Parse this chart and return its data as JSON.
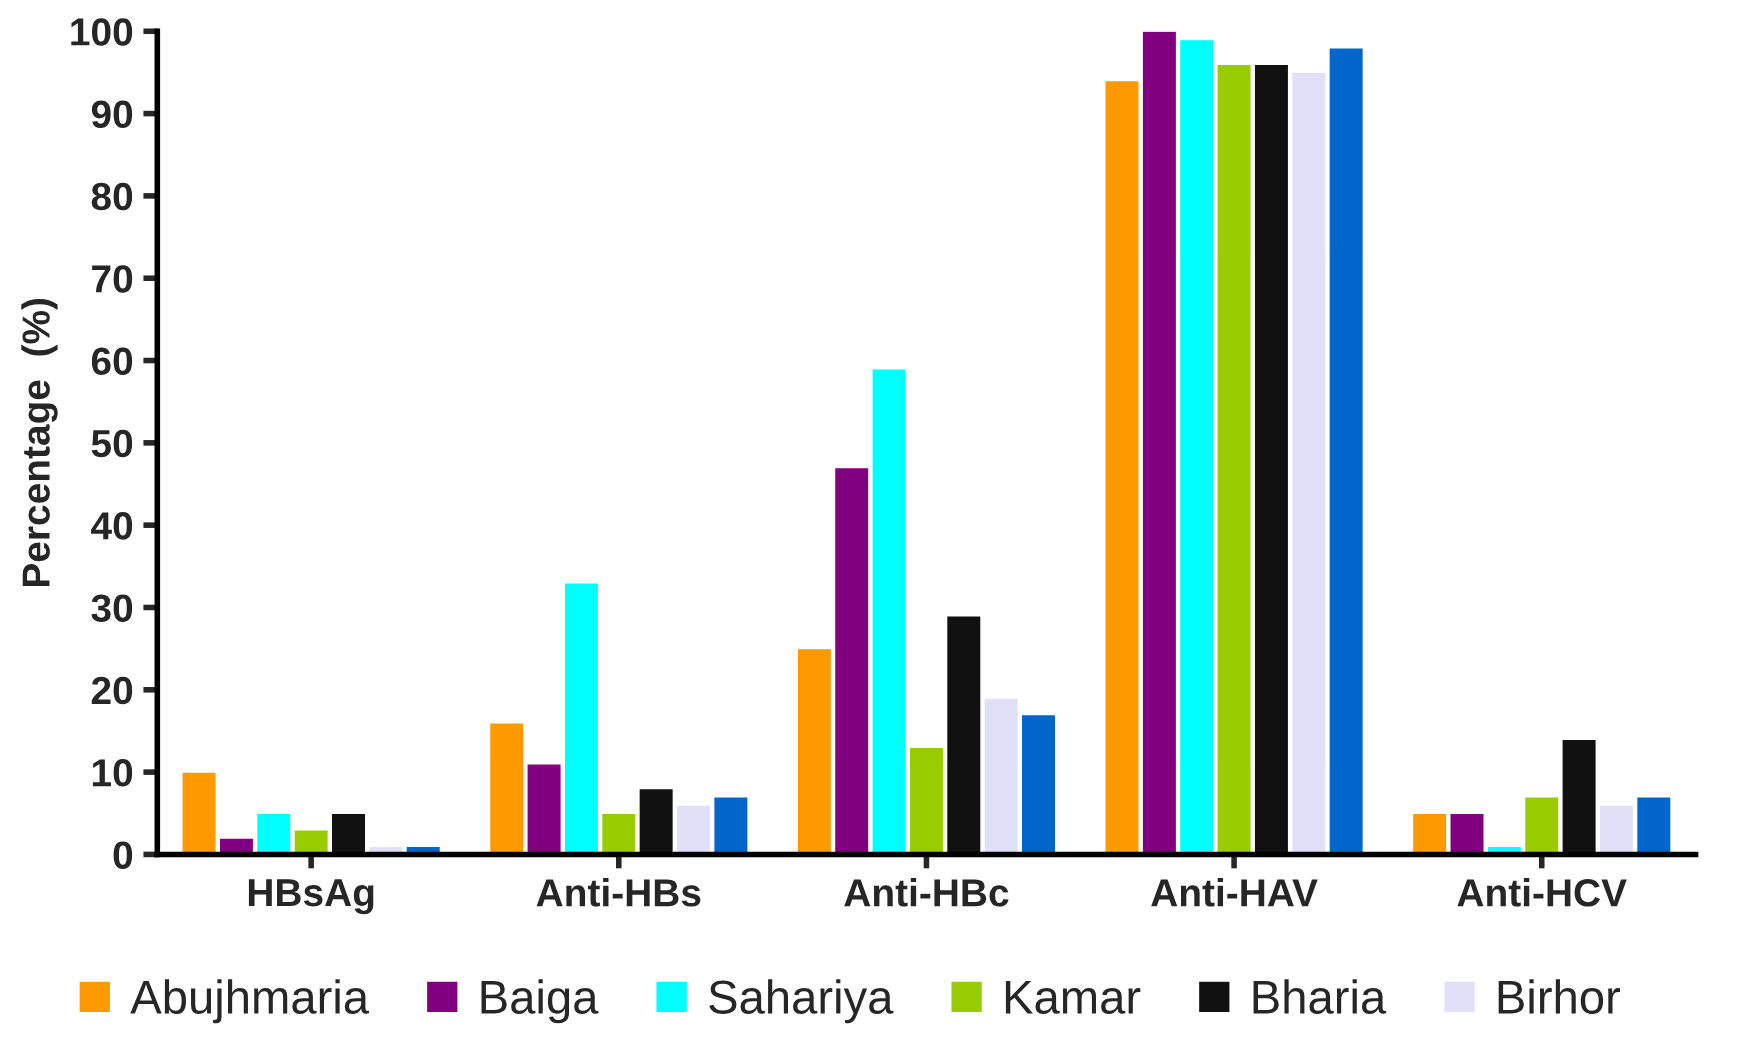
{
  "chart_data": {
    "type": "bar",
    "ylabel": "Percentage  (%)",
    "categories": [
      "HBsAg",
      "Anti-HBs",
      "Anti-HBc",
      "Anti-HAV",
      "Anti-HCV"
    ],
    "series": [
      {
        "name": "Abujhmaria",
        "color": "#ff9900",
        "values": [
          10,
          16,
          25,
          94,
          5
        ]
      },
      {
        "name": "Baiga",
        "color": "#800080",
        "values": [
          2,
          11,
          47,
          100,
          5
        ]
      },
      {
        "name": "Sahariya",
        "color": "#00ffff",
        "values": [
          5,
          33,
          59,
          99,
          1
        ]
      },
      {
        "name": "Kamar",
        "color": "#99cc00",
        "values": [
          3,
          5,
          13,
          96,
          7
        ]
      },
      {
        "name": "Bharia",
        "color": "#111111",
        "values": [
          5,
          8,
          29,
          96,
          14
        ]
      },
      {
        "name": "Birhor",
        "color": "#e0e0f8",
        "values": [
          1,
          6,
          19,
          95,
          6
        ]
      },
      {
        "color": "#0066cc",
        "values": [
          1,
          7,
          17,
          98,
          7
        ]
      }
    ],
    "ylim": [
      0,
      100
    ],
    "yticks": [
      0,
      10,
      20,
      30,
      40,
      50,
      60,
      70,
      80,
      90,
      100
    ],
    "grid": false,
    "legend": "bottom"
  }
}
